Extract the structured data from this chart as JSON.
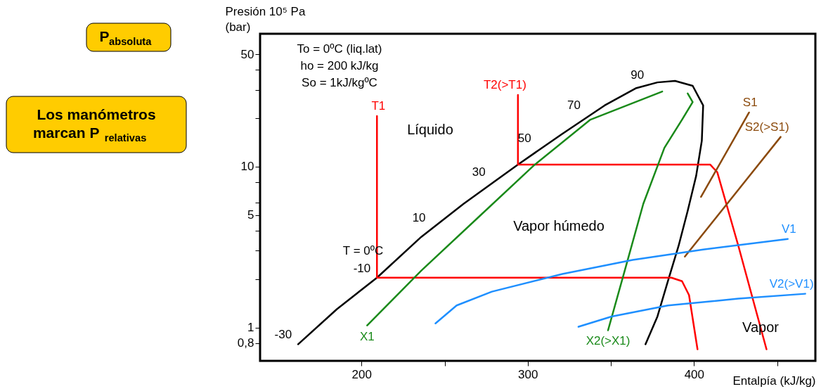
{
  "chart_data": {
    "type": "line",
    "xlabel": "Entalpía (kJ/kg)",
    "ylabel": "Presión 10⁵ Pa\n(bar)",
    "log": "y",
    "grid": false,
    "legend": false,
    "xlim": [
      139,
      473
    ],
    "xticks": [
      200,
      {
        "value": 250,
        "label": null
      },
      300,
      {
        "value": 350,
        "label": null
      },
      400,
      {
        "value": 450,
        "label": null
      }
    ],
    "ylim": [
      0.62,
      67
    ],
    "yticks": [
      {
        "value": 0.8,
        "label": "0,8"
      },
      1,
      {
        "value": 2,
        "label": null
      },
      {
        "value": 3,
        "label": null
      },
      {
        "value": 4,
        "label": null
      },
      5,
      {
        "value": 6,
        "label": null
      },
      {
        "value": 8,
        "label": null
      },
      10,
      {
        "value": 20,
        "label": null
      },
      {
        "value": 30,
        "label": null
      },
      {
        "value": 40,
        "label": null
      },
      50
    ],
    "series": [
      {
        "color": "#000000",
        "x": [
          161.9,
          185.2,
          209.3,
          236.0,
          261.4,
          294.1,
          320.8,
          346.2,
          365.3,
          378.0,
          388.6,
          399.2,
          405.5,
          404.7,
          401.3,
          396.2,
          390.7,
          384.3,
          378.0,
          370.8
        ],
        "values": [
          0.786,
          1.3,
          2.04,
          3.66,
          5.87,
          10.3,
          16.0,
          24.0,
          30.8,
          33.4,
          34.1,
          31.8,
          24.0,
          14.5,
          8.77,
          5.31,
          3.21,
          1.94,
          1.17,
          0.786
        ]
      },
      {
        "name": "T1",
        "color": "#ff0000",
        "x": [
          402.1,
          397.0,
          392.8,
          386.4,
          209.3,
          209.3
        ],
        "values": [
          0.732,
          1.59,
          1.94,
          2.04,
          2.04,
          20.6
        ]
      },
      {
        "name": "T2(>T1)",
        "color": "#ff0000",
        "x": [
          443.6,
          426.7,
          414.0,
          409.7,
          294.1,
          294.1
        ],
        "values": [
          0.732,
          3.21,
          9.23,
          10.3,
          10.3,
          27.9
        ]
      },
      {
        "name": "X1",
        "color": "#1a8a1a",
        "x": [
          380.9,
          337.7,
          303.8,
          269.9,
          236.0,
          203.4
        ],
        "values": [
          29.3,
          19.6,
          10.2,
          4.8,
          2.26,
          1.03
        ]
      },
      {
        "name": "X2(>X1)",
        "color": "#1a8a1a",
        "x": [
          396.2,
          399.2,
          392.8,
          382.2,
          369.5,
          358.9,
          348.3
        ],
        "values": [
          28.5,
          25.2,
          19.6,
          13.1,
          5.87,
          2.37,
          0.961
        ]
      },
      {
        "name": "S1",
        "color": "#8b4a0c",
        "x": [
          404.2,
          433.1
        ],
        "values": [
          6.49,
          21.7
        ]
      },
      {
        "name": "S2(>S1)",
        "color": "#8b4a0c",
        "x": [
          394.5,
          452.1
        ],
        "values": [
          2.76,
          15.3
        ]
      },
      {
        "name": "V1",
        "color": "#1e8fff",
        "x": [
          244.5,
          257.2,
          278.4,
          320.8,
          363.1,
          405.5,
          456.4
        ],
        "values": [
          1.06,
          1.37,
          1.67,
          2.15,
          2.63,
          3.05,
          3.55
        ]
      },
      {
        "name": "V2(>V1)",
        "color": "#1e8fff",
        "x": [
          330.5,
          350.4,
          384.3,
          426.7,
          466.9
        ],
        "values": [
          1.01,
          1.17,
          1.37,
          1.51,
          1.62
        ]
      }
    ],
    "annotations": [
      {
        "text": "-30",
        "x": 161.9,
        "y": 0.786
      },
      {
        "text": "-10",
        "x": 209.3,
        "y": 2.04
      },
      {
        "text": "T = 0ºC",
        "x": 216.9,
        "y": 2.63
      },
      {
        "text": "10",
        "x": 242.4,
        "y": 4.21
      },
      {
        "text": "30",
        "x": 278.4,
        "y": 8.1
      },
      {
        "text": "50",
        "x": 305.9,
        "y": 13.1
      },
      {
        "text": "70",
        "x": 335.6,
        "y": 21.0
      },
      {
        "text": "90",
        "x": 373.7,
        "y": 32.4
      },
      "To = 0ºC (liq.lat)",
      "ho = 200 kJ/kg",
      "So = 1kJ/kgºC",
      "Líquido",
      "Vapor húmedo",
      "Vapor",
      "P$_{absoluta}$",
      "Los manómetros\nmarcan P$_{relativas}$"
    ]
  }
}
